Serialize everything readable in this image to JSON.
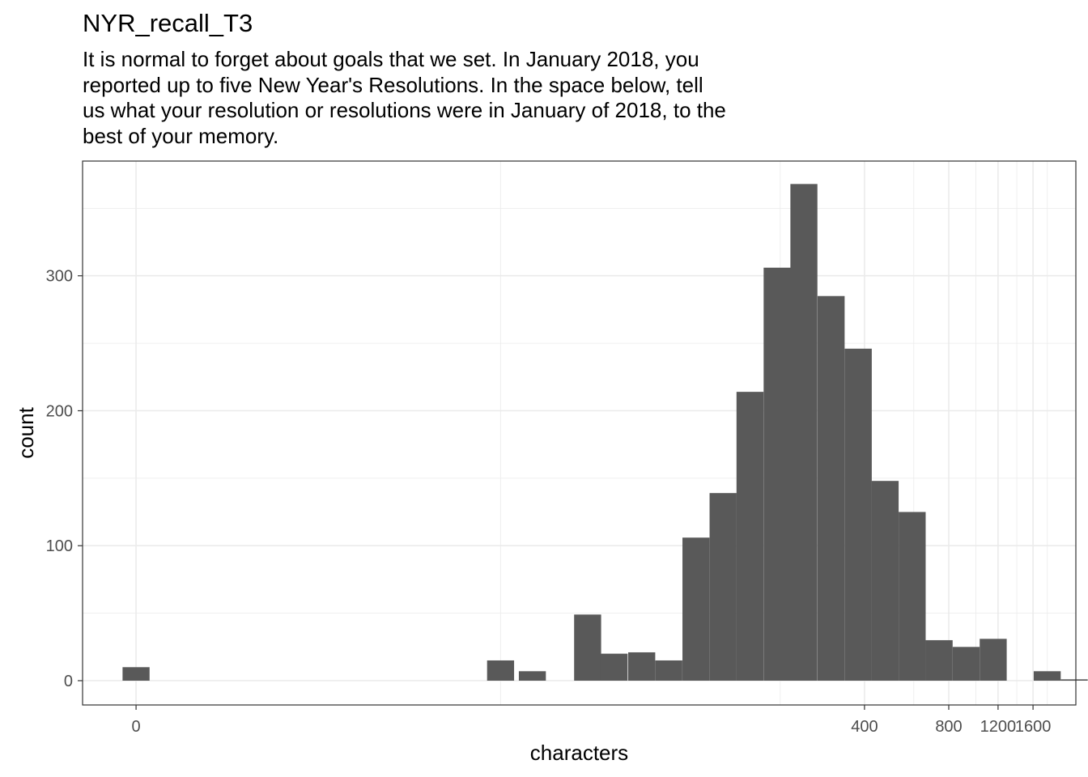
{
  "chart_data": {
    "type": "bar",
    "title": "NYR_recall_T3",
    "subtitle": "It is normal to forget about goals that we set. In January 2018, you\nreported up to five New Year's Resolutions. In the space below, tell\nus what your resolution or resolutions were in January of 2018, to the\nbest of your memory.",
    "xlabel": "characters",
    "ylabel": "count",
    "x_scale": "pseudo-log",
    "x_ticks": [
      0,
      400,
      800,
      1200,
      1600
    ],
    "x_tick_labels": [
      "0",
      "400",
      "800",
      "1200",
      "1600"
    ],
    "y_ticks": [
      0,
      100,
      200,
      300
    ],
    "y_tick_labels": [
      "0",
      "100",
      "200",
      "300"
    ],
    "ylim": [
      -18,
      385
    ],
    "grid": true,
    "bins": [
      {
        "x": 0,
        "count": 10
      },
      {
        "x": 20,
        "count": 15
      },
      {
        "x": 26,
        "count": 7
      },
      {
        "x": 41,
        "count": 49
      },
      {
        "x": 51,
        "count": 20
      },
      {
        "x": 64,
        "count": 21
      },
      {
        "x": 80,
        "count": 15
      },
      {
        "x": 100,
        "count": 106
      },
      {
        "x": 125,
        "count": 139
      },
      {
        "x": 156,
        "count": 214
      },
      {
        "x": 195,
        "count": 306
      },
      {
        "x": 243,
        "count": 368
      },
      {
        "x": 304,
        "count": 285
      },
      {
        "x": 380,
        "count": 246
      },
      {
        "x": 474,
        "count": 148
      },
      {
        "x": 592,
        "count": 125
      },
      {
        "x": 739,
        "count": 30
      },
      {
        "x": 923,
        "count": 25
      },
      {
        "x": 1153,
        "count": 31
      },
      {
        "x": 1798,
        "count": 7
      },
      {
        "x": 2245,
        "count": 1
      }
    ],
    "bar_color": "#595959",
    "grid_color": "#ebebeb",
    "panel_border_color": "#333333",
    "tick_label_color": "#4d4d4d"
  }
}
